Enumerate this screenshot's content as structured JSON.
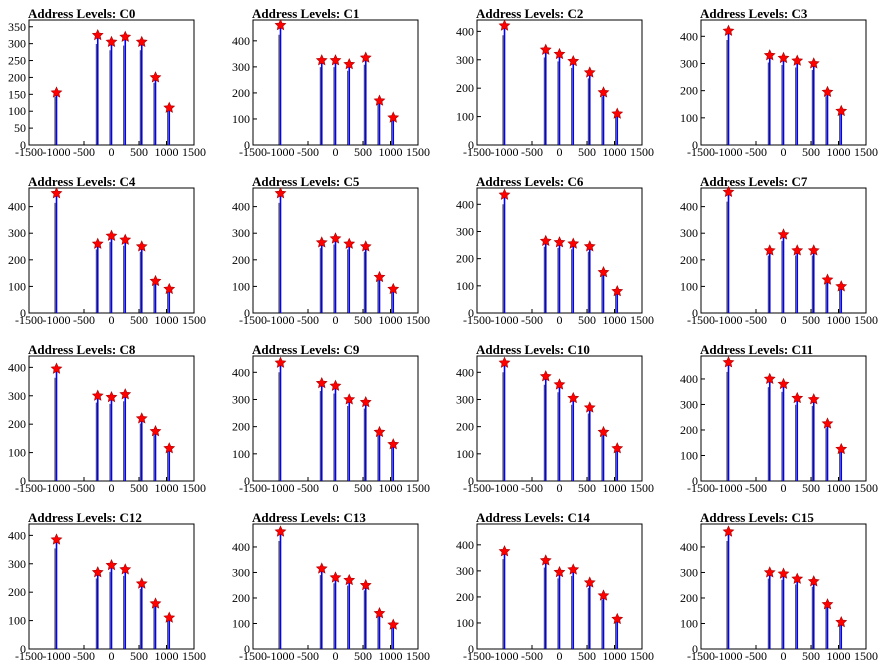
{
  "chart_data": [
    {
      "type": "bar",
      "title": "Address Levels: C0",
      "xlim": [
        -1500,
        1500
      ],
      "ylim": [
        0,
        370
      ],
      "yticks": [
        0,
        50,
        100,
        150,
        200,
        250,
        300,
        350
      ],
      "xticks": [
        -1500,
        -1000,
        -500,
        0,
        500,
        1000,
        1500
      ],
      "x_tick_labels": [
        "-1500",
        "-1000",
        "-500",
        "0",
        "500",
        "1000",
        "1500"
      ],
      "y_tick_labels": [
        "0",
        "50",
        "100",
        "150",
        "200",
        "250",
        "300",
        "350"
      ],
      "peaks": [
        {
          "x": -1000,
          "y": 155
        },
        {
          "x": -250,
          "y": 325
        },
        {
          "x": 0,
          "y": 305
        },
        {
          "x": 250,
          "y": 320
        },
        {
          "x": 550,
          "y": 305
        },
        {
          "x": 800,
          "y": 200
        },
        {
          "x": 1050,
          "y": 110
        }
      ]
    },
    {
      "type": "bar",
      "title": "Address Levels: C1",
      "xlim": [
        -1500,
        1500
      ],
      "ylim": [
        0,
        480
      ],
      "yticks": [
        0,
        100,
        200,
        300,
        400
      ],
      "xticks": [
        -1500,
        -1000,
        -500,
        0,
        500,
        1000,
        1500
      ],
      "x_tick_labels": [
        "-1500",
        "-1000",
        "-500",
        "0",
        "500",
        "1000",
        "1500"
      ],
      "y_tick_labels": [
        "0",
        "100",
        "200",
        "300",
        "400"
      ],
      "peaks": [
        {
          "x": -1000,
          "y": 460
        },
        {
          "x": -250,
          "y": 325
        },
        {
          "x": 0,
          "y": 325
        },
        {
          "x": 250,
          "y": 310
        },
        {
          "x": 550,
          "y": 335
        },
        {
          "x": 800,
          "y": 170
        },
        {
          "x": 1050,
          "y": 105
        }
      ]
    },
    {
      "type": "bar",
      "title": "Address Levels: C2",
      "xlim": [
        -1500,
        1500
      ],
      "ylim": [
        0,
        440
      ],
      "yticks": [
        0,
        100,
        200,
        300,
        400
      ],
      "xticks": [
        -1500,
        -1000,
        -500,
        0,
        500,
        1000,
        1500
      ],
      "x_tick_labels": [
        "-1500",
        "-1000",
        "-500",
        "0",
        "500",
        "1000",
        "1500"
      ],
      "y_tick_labels": [
        "0",
        "100",
        "200",
        "300",
        "400"
      ],
      "peaks": [
        {
          "x": -1000,
          "y": 420
        },
        {
          "x": -250,
          "y": 335
        },
        {
          "x": 0,
          "y": 320
        },
        {
          "x": 250,
          "y": 295
        },
        {
          "x": 550,
          "y": 255
        },
        {
          "x": 800,
          "y": 185
        },
        {
          "x": 1050,
          "y": 110
        }
      ]
    },
    {
      "type": "bar",
      "title": "Address Levels: C3",
      "xlim": [
        -1500,
        1500
      ],
      "ylim": [
        0,
        460
      ],
      "yticks": [
        0,
        100,
        200,
        300,
        400
      ],
      "xticks": [
        -1500,
        -1000,
        -500,
        0,
        500,
        1000,
        1500
      ],
      "x_tick_labels": [
        "-1500",
        "-1000",
        "-500",
        "0",
        "500",
        "1000",
        "1500"
      ],
      "y_tick_labels": [
        "0",
        "100",
        "200",
        "300",
        "400"
      ],
      "peaks": [
        {
          "x": -1000,
          "y": 420
        },
        {
          "x": -250,
          "y": 330
        },
        {
          "x": 0,
          "y": 320
        },
        {
          "x": 250,
          "y": 310
        },
        {
          "x": 550,
          "y": 300
        },
        {
          "x": 800,
          "y": 195
        },
        {
          "x": 1050,
          "y": 125
        }
      ]
    },
    {
      "type": "bar",
      "title": "Address Levels: C4",
      "xlim": [
        -1500,
        1500
      ],
      "ylim": [
        0,
        470
      ],
      "yticks": [
        0,
        100,
        200,
        300,
        400
      ],
      "xticks": [
        -1500,
        -1000,
        -500,
        0,
        500,
        1000,
        1500
      ],
      "x_tick_labels": [
        "-1500",
        "-1000",
        "-500",
        "0",
        "500",
        "1000",
        "1500"
      ],
      "y_tick_labels": [
        "0",
        "100",
        "200",
        "300",
        "400"
      ],
      "peaks": [
        {
          "x": -1000,
          "y": 450
        },
        {
          "x": -250,
          "y": 260
        },
        {
          "x": 0,
          "y": 290
        },
        {
          "x": 250,
          "y": 275
        },
        {
          "x": 550,
          "y": 250
        },
        {
          "x": 800,
          "y": 120
        },
        {
          "x": 1050,
          "y": 90
        }
      ]
    },
    {
      "type": "bar",
      "title": "Address Levels: C5",
      "xlim": [
        -1500,
        1500
      ],
      "ylim": [
        0,
        470
      ],
      "yticks": [
        0,
        100,
        200,
        300,
        400
      ],
      "xticks": [
        -1500,
        -1000,
        -500,
        0,
        500,
        1000,
        1500
      ],
      "x_tick_labels": [
        "-1500",
        "-1000",
        "-500",
        "0",
        "500",
        "1000",
        "1500"
      ],
      "y_tick_labels": [
        "0",
        "100",
        "200",
        "300",
        "400"
      ],
      "peaks": [
        {
          "x": -1000,
          "y": 450
        },
        {
          "x": -250,
          "y": 265
        },
        {
          "x": 0,
          "y": 280
        },
        {
          "x": 250,
          "y": 260
        },
        {
          "x": 550,
          "y": 250
        },
        {
          "x": 800,
          "y": 135
        },
        {
          "x": 1050,
          "y": 90
        }
      ]
    },
    {
      "type": "bar",
      "title": "Address Levels: C6",
      "xlim": [
        -1500,
        1500
      ],
      "ylim": [
        0,
        460
      ],
      "yticks": [
        0,
        100,
        200,
        300,
        400
      ],
      "xticks": [
        -1500,
        -1000,
        -500,
        0,
        500,
        1000,
        1500
      ],
      "x_tick_labels": [
        "-1500",
        "-1000",
        "-500",
        "0",
        "500",
        "1000",
        "1500"
      ],
      "y_tick_labels": [
        "0",
        "100",
        "200",
        "300",
        "400"
      ],
      "peaks": [
        {
          "x": -1000,
          "y": 435
        },
        {
          "x": -250,
          "y": 265
        },
        {
          "x": 0,
          "y": 260
        },
        {
          "x": 250,
          "y": 255
        },
        {
          "x": 550,
          "y": 245
        },
        {
          "x": 800,
          "y": 150
        },
        {
          "x": 1050,
          "y": 80
        }
      ]
    },
    {
      "type": "bar",
      "title": "Address Levels: C7",
      "xlim": [
        -1500,
        1500
      ],
      "ylim": [
        0,
        470
      ],
      "yticks": [
        0,
        100,
        200,
        300,
        400
      ],
      "xticks": [
        -1500,
        -1000,
        -500,
        0,
        500,
        1000,
        1500
      ],
      "x_tick_labels": [
        "-1500",
        "-1000",
        "-500",
        "0",
        "500",
        "1000",
        "1500"
      ],
      "y_tick_labels": [
        "0",
        "100",
        "200",
        "300",
        "400"
      ],
      "peaks": [
        {
          "x": -1000,
          "y": 455
        },
        {
          "x": -250,
          "y": 235
        },
        {
          "x": 0,
          "y": 295
        },
        {
          "x": 250,
          "y": 235
        },
        {
          "x": 550,
          "y": 235
        },
        {
          "x": 800,
          "y": 125
        },
        {
          "x": 1050,
          "y": 100
        }
      ]
    },
    {
      "type": "bar",
      "title": "Address Levels: C8",
      "xlim": [
        -1500,
        1500
      ],
      "ylim": [
        0,
        440
      ],
      "yticks": [
        0,
        100,
        200,
        300,
        400
      ],
      "xticks": [
        -1500,
        -1000,
        -500,
        0,
        500,
        1000,
        1500
      ],
      "x_tick_labels": [
        "-1500",
        "-1000",
        "-500",
        "0",
        "500",
        "1000",
        "1500"
      ],
      "y_tick_labels": [
        "0",
        "100",
        "200",
        "300",
        "400"
      ],
      "peaks": [
        {
          "x": -1000,
          "y": 395
        },
        {
          "x": -250,
          "y": 300
        },
        {
          "x": 0,
          "y": 295
        },
        {
          "x": 250,
          "y": 305
        },
        {
          "x": 550,
          "y": 220
        },
        {
          "x": 800,
          "y": 175
        },
        {
          "x": 1050,
          "y": 115
        }
      ]
    },
    {
      "type": "bar",
      "title": "Address Levels: C9",
      "xlim": [
        -1500,
        1500
      ],
      "ylim": [
        0,
        460
      ],
      "yticks": [
        0,
        100,
        200,
        300,
        400
      ],
      "xticks": [
        -1500,
        -1000,
        -500,
        0,
        500,
        1000,
        1500
      ],
      "x_tick_labels": [
        "-1500",
        "-1000",
        "-500",
        "0",
        "500",
        "1000",
        "1500"
      ],
      "y_tick_labels": [
        "0",
        "100",
        "200",
        "300",
        "400"
      ],
      "peaks": [
        {
          "x": -1000,
          "y": 435
        },
        {
          "x": -250,
          "y": 360
        },
        {
          "x": 0,
          "y": 350
        },
        {
          "x": 250,
          "y": 300
        },
        {
          "x": 550,
          "y": 290
        },
        {
          "x": 800,
          "y": 180
        },
        {
          "x": 1050,
          "y": 135
        }
      ]
    },
    {
      "type": "bar",
      "title": "Address Levels: C10",
      "xlim": [
        -1500,
        1500
      ],
      "ylim": [
        0,
        460
      ],
      "yticks": [
        0,
        100,
        200,
        300,
        400
      ],
      "xticks": [
        -1500,
        -1000,
        -500,
        0,
        500,
        1000,
        1500
      ],
      "x_tick_labels": [
        "-1500",
        "-1000",
        "-500",
        "0",
        "500",
        "1000",
        "1500"
      ],
      "y_tick_labels": [
        "0",
        "100",
        "200",
        "300",
        "400"
      ],
      "peaks": [
        {
          "x": -1000,
          "y": 435
        },
        {
          "x": -250,
          "y": 385
        },
        {
          "x": 0,
          "y": 355
        },
        {
          "x": 250,
          "y": 305
        },
        {
          "x": 550,
          "y": 270
        },
        {
          "x": 800,
          "y": 180
        },
        {
          "x": 1050,
          "y": 120
        }
      ]
    },
    {
      "type": "bar",
      "title": "Address Levels: C11",
      "xlim": [
        -1500,
        1500
      ],
      "ylim": [
        0,
        490
      ],
      "yticks": [
        0,
        100,
        200,
        300,
        400
      ],
      "xticks": [
        -1500,
        -1000,
        -500,
        0,
        500,
        1000,
        1500
      ],
      "x_tick_labels": [
        "-1500",
        "-1000",
        "-500",
        "0",
        "500",
        "1000",
        "1500"
      ],
      "y_tick_labels": [
        "0",
        "100",
        "200",
        "300",
        "400"
      ],
      "peaks": [
        {
          "x": -1000,
          "y": 465
        },
        {
          "x": -250,
          "y": 400
        },
        {
          "x": 0,
          "y": 380
        },
        {
          "x": 250,
          "y": 325
        },
        {
          "x": 550,
          "y": 320
        },
        {
          "x": 800,
          "y": 225
        },
        {
          "x": 1050,
          "y": 125
        }
      ]
    },
    {
      "type": "bar",
      "title": "Address Levels: C12",
      "xlim": [
        -1500,
        1500
      ],
      "ylim": [
        0,
        440
      ],
      "yticks": [
        0,
        100,
        200,
        300,
        400
      ],
      "xticks": [
        -1500,
        -1000,
        -500,
        0,
        500,
        1000,
        1500
      ],
      "x_tick_labels": [
        "-1500",
        "-1000",
        "-500",
        "0",
        "500",
        "1000",
        "1500"
      ],
      "y_tick_labels": [
        "0",
        "100",
        "200",
        "300",
        "400"
      ],
      "peaks": [
        {
          "x": -1000,
          "y": 385
        },
        {
          "x": -250,
          "y": 270
        },
        {
          "x": 0,
          "y": 295
        },
        {
          "x": 250,
          "y": 280
        },
        {
          "x": 550,
          "y": 230
        },
        {
          "x": 800,
          "y": 160
        },
        {
          "x": 1050,
          "y": 110
        }
      ]
    },
    {
      "type": "bar",
      "title": "Address Levels: C13",
      "xlim": [
        -1500,
        1500
      ],
      "ylim": [
        0,
        490
      ],
      "yticks": [
        0,
        100,
        200,
        300,
        400
      ],
      "xticks": [
        -1500,
        -1000,
        -500,
        0,
        500,
        1000,
        1500
      ],
      "x_tick_labels": [
        "-1500",
        "-1000",
        "-500",
        "0",
        "500",
        "1000",
        "1500"
      ],
      "y_tick_labels": [
        "0",
        "100",
        "200",
        "300",
        "400"
      ],
      "peaks": [
        {
          "x": -1000,
          "y": 460
        },
        {
          "x": -250,
          "y": 315
        },
        {
          "x": 0,
          "y": 280
        },
        {
          "x": 250,
          "y": 270
        },
        {
          "x": 550,
          "y": 250
        },
        {
          "x": 800,
          "y": 140
        },
        {
          "x": 1050,
          "y": 95
        }
      ]
    },
    {
      "type": "bar",
      "title": "Address Levels: C14",
      "xlim": [
        -1500,
        1500
      ],
      "ylim": [
        0,
        480
      ],
      "yticks": [
        0,
        100,
        200,
        300,
        400
      ],
      "xticks": [
        -1500,
        -1000,
        -500,
        0,
        500,
        1000,
        1500
      ],
      "x_tick_labels": [
        "-1500",
        "-1000",
        "-500",
        "0",
        "500",
        "1000",
        "1500"
      ],
      "y_tick_labels": [
        "0",
        "100",
        "200",
        "300",
        "400"
      ],
      "peaks": [
        {
          "x": -1000,
          "y": 375
        },
        {
          "x": -250,
          "y": 340
        },
        {
          "x": 0,
          "y": 295
        },
        {
          "x": 250,
          "y": 305
        },
        {
          "x": 550,
          "y": 255
        },
        {
          "x": 800,
          "y": 205
        },
        {
          "x": 1050,
          "y": 115
        }
      ]
    },
    {
      "type": "bar",
      "title": "Address Levels: C15",
      "xlim": [
        -1500,
        1500
      ],
      "ylim": [
        0,
        490
      ],
      "yticks": [
        0,
        100,
        200,
        300,
        400
      ],
      "xticks": [
        -1500,
        -1000,
        -500,
        0,
        500,
        1000,
        1500
      ],
      "x_tick_labels": [
        "-1500",
        "-1000",
        "-500",
        "0",
        "500",
        "1000",
        "1500"
      ],
      "y_tick_labels": [
        "0",
        "100",
        "200",
        "300",
        "400"
      ],
      "peaks": [
        {
          "x": -1000,
          "y": 460
        },
        {
          "x": -250,
          "y": 300
        },
        {
          "x": 0,
          "y": 295
        },
        {
          "x": 250,
          "y": 275
        },
        {
          "x": 550,
          "y": 265
        },
        {
          "x": 800,
          "y": 175
        },
        {
          "x": 1050,
          "y": 105
        }
      ]
    }
  ],
  "colors": {
    "bars": "#0000ff",
    "markers": "#ff0000",
    "axes": "#000000"
  }
}
